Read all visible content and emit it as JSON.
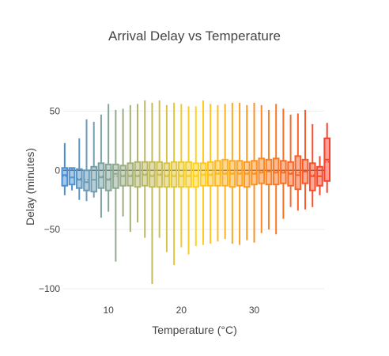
{
  "chart_data": {
    "type": "box",
    "title": "Arrival Delay vs Temperature",
    "xlabel": "Temperature (°C)",
    "ylabel": "Delay (minutes)",
    "xlim": [
      3.8,
      39.6
    ],
    "ylim": [
      -110,
      85
    ],
    "xticks": [
      10,
      20,
      30
    ],
    "yticks": [
      -100,
      -50,
      0,
      50
    ],
    "grid": true,
    "legend": "none",
    "colors": {
      "start": "#4a8fd6",
      "mid": "#ffd21f",
      "end": "#f5412d"
    },
    "series": [
      {
        "x": 4,
        "q1": -13,
        "median": -4,
        "q3": 2,
        "lower": -21,
        "upper": 23,
        "mean": -5
      },
      {
        "x": 5,
        "q1": -12,
        "median": -6,
        "q3": 2,
        "lower": -17,
        "upper": 0,
        "mean": -6
      },
      {
        "x": 6,
        "q1": -15,
        "median": -8,
        "q3": 1,
        "lower": -25,
        "upper": 27,
        "mean": -7
      },
      {
        "x": 7,
        "q1": -17,
        "median": -10,
        "q3": 0,
        "lower": -26,
        "upper": 43,
        "mean": -8
      },
      {
        "x": 8,
        "q1": -18,
        "median": -8,
        "q3": 3,
        "lower": -23,
        "upper": 41,
        "mean": -8
      },
      {
        "x": 9,
        "q1": -15,
        "median": -6,
        "q3": 6,
        "lower": -40,
        "upper": 47,
        "mean": -5
      },
      {
        "x": 10,
        "q1": -17,
        "median": -8,
        "q3": 5,
        "lower": -35,
        "upper": 56,
        "mean": -7
      },
      {
        "x": 11,
        "q1": -15,
        "median": -3,
        "q3": 5,
        "lower": -77,
        "upper": 51,
        "mean": -5
      },
      {
        "x": 12,
        "q1": -13,
        "median": -5,
        "q3": 4,
        "lower": -39,
        "upper": 52,
        "mean": -4
      },
      {
        "x": 13,
        "q1": -13,
        "median": -5,
        "q3": 6,
        "lower": -52,
        "upper": 55,
        "mean": -4
      },
      {
        "x": 14,
        "q1": -14,
        "median": -5,
        "q3": 7,
        "lower": -44,
        "upper": 56,
        "mean": -4
      },
      {
        "x": 15,
        "q1": -13,
        "median": -4,
        "q3": 7,
        "lower": -57,
        "upper": 59,
        "mean": -3
      },
      {
        "x": 16,
        "q1": -14,
        "median": -5,
        "q3": 7,
        "lower": -96,
        "upper": 57,
        "mean": -4
      },
      {
        "x": 17,
        "q1": -14,
        "median": -4,
        "q3": 7,
        "lower": -57,
        "upper": 59,
        "mean": -3
      },
      {
        "x": 18,
        "q1": -14,
        "median": -5,
        "q3": 6,
        "lower": -69,
        "upper": 55,
        "mean": -4
      },
      {
        "x": 19,
        "q1": -14,
        "median": -5,
        "q3": 7,
        "lower": -80,
        "upper": 57,
        "mean": -4
      },
      {
        "x": 20,
        "q1": -14,
        "median": -5,
        "q3": 7,
        "lower": -65,
        "upper": 56,
        "mean": -4
      },
      {
        "x": 21,
        "q1": -14,
        "median": -5,
        "q3": 7,
        "lower": -71,
        "upper": 54,
        "mean": -4
      },
      {
        "x": 22,
        "q1": -14,
        "median": -5,
        "q3": 6,
        "lower": -64,
        "upper": 54,
        "mean": -4
      },
      {
        "x": 23,
        "q1": -13,
        "median": -4,
        "q3": 6,
        "lower": -63,
        "upper": 59,
        "mean": -3
      },
      {
        "x": 24,
        "q1": -13,
        "median": -4,
        "q3": 7,
        "lower": -62,
        "upper": 56,
        "mean": -3
      },
      {
        "x": 25,
        "q1": -13,
        "median": -3,
        "q3": 8,
        "lower": -60,
        "upper": 55,
        "mean": -2
      },
      {
        "x": 26,
        "q1": -13,
        "median": -3,
        "q3": 9,
        "lower": -58,
        "upper": 56,
        "mean": -2
      },
      {
        "x": 27,
        "q1": -14,
        "median": -3,
        "q3": 8,
        "lower": -62,
        "upper": 57,
        "mean": -2
      },
      {
        "x": 28,
        "q1": -13,
        "median": -3,
        "q3": 8,
        "lower": -63,
        "upper": 57,
        "mean": -2
      },
      {
        "x": 29,
        "q1": -14,
        "median": -3,
        "q3": 7,
        "lower": -59,
        "upper": 55,
        "mean": -2
      },
      {
        "x": 30,
        "q1": -12,
        "median": -3,
        "q3": 8,
        "lower": -61,
        "upper": 57,
        "mean": -2
      },
      {
        "x": 31,
        "q1": -11,
        "median": -2,
        "q3": 10,
        "lower": -53,
        "upper": 55,
        "mean": -1
      },
      {
        "x": 32,
        "q1": -12,
        "median": -1,
        "q3": 9,
        "lower": -50,
        "upper": 51,
        "mean": -1
      },
      {
        "x": 33,
        "q1": -12,
        "median": -2,
        "q3": 10,
        "lower": -54,
        "upper": 56,
        "mean": -1
      },
      {
        "x": 34,
        "q1": -11,
        "median": -2,
        "q3": 8,
        "lower": -41,
        "upper": 52,
        "mean": -1
      },
      {
        "x": 35,
        "q1": -13,
        "median": -3,
        "q3": 7,
        "lower": -31,
        "upper": 47,
        "mean": -2
      },
      {
        "x": 36,
        "q1": -16,
        "median": -4,
        "q3": 12,
        "lower": -34,
        "upper": 48,
        "mean": -2
      },
      {
        "x": 37,
        "q1": -11,
        "median": -1,
        "q3": 9,
        "lower": -33,
        "upper": 51,
        "mean": -1
      },
      {
        "x": 38,
        "q1": -17,
        "median": -5,
        "q3": 6,
        "lower": -31,
        "upper": 39,
        "mean": -4
      },
      {
        "x": 39,
        "q1": -13,
        "median": -5,
        "q3": 3,
        "lower": -21,
        "upper": 12,
        "mean": -5
      },
      {
        "x": 40,
        "q1": -9,
        "median": 9,
        "q3": 27,
        "lower": -19,
        "upper": 40,
        "mean": 7
      }
    ]
  }
}
